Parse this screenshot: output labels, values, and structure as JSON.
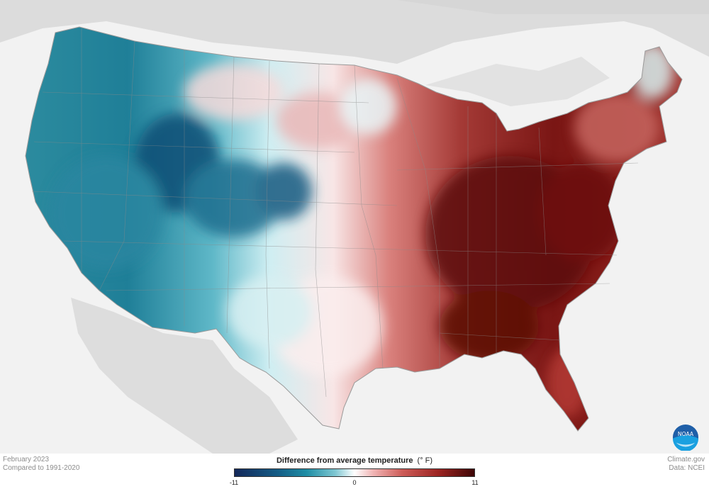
{
  "map": {
    "title": "Difference from average temperature",
    "unit": "(° F)",
    "period": "February 2023",
    "baseline": "Compared to 1991-2020",
    "legend": {
      "min": "-11",
      "mid": "0",
      "max": "11",
      "colors": [
        "#14285a",
        "#1f8ea5",
        "#ffffff",
        "#cd5c58",
        "#3e0606"
      ]
    },
    "anomaly_pattern": "Below-average temperatures across the West and northern Rockies; above-average temperatures across the East and Southeast, strongest in the Ohio Valley and Southeast.",
    "source": "Climate.gov",
    "data_credit": "Data: NCEI",
    "logo_text": "NOAA"
  }
}
